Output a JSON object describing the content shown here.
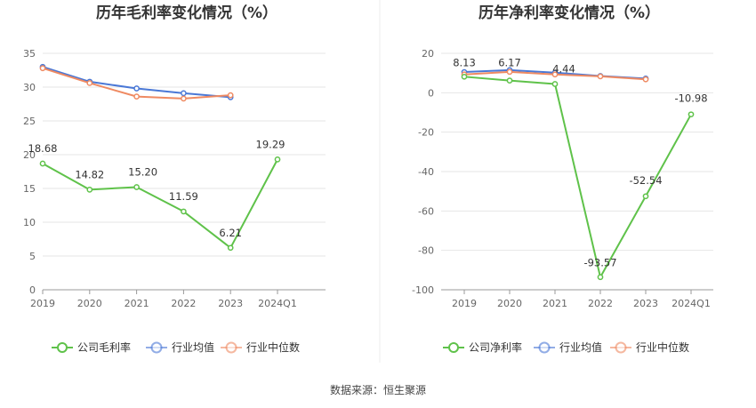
{
  "source": "数据来源：恒生聚源",
  "chart_data": [
    {
      "type": "line",
      "title": "历年毛利率变化情况（%）",
      "categories": [
        "2019",
        "2020",
        "2021",
        "2022",
        "2023",
        "2024Q1"
      ],
      "ylim": [
        0,
        35
      ],
      "yticks": [
        0,
        5,
        10,
        15,
        20,
        25,
        30,
        35
      ],
      "grid": true,
      "legend_position": "bottom",
      "series": [
        {
          "name": "公司毛利率",
          "color": "#5fc24a",
          "values": [
            18.68,
            14.82,
            15.2,
            11.59,
            6.21,
            19.29
          ],
          "labels": [
            "18.68",
            "14.82",
            "15.20",
            "11.59",
            "6.21",
            "19.29"
          ]
        },
        {
          "name": "行业均值",
          "color": "#4a78d6",
          "values": [
            33.0,
            30.8,
            29.8,
            29.1,
            28.5,
            null
          ]
        },
        {
          "name": "行业中位数",
          "color": "#ef8a62",
          "values": [
            32.8,
            30.6,
            28.6,
            28.3,
            28.8,
            null
          ]
        }
      ]
    },
    {
      "type": "line",
      "title": "历年净利率变化情况（%）",
      "categories": [
        "2019",
        "2020",
        "2021",
        "2022",
        "2023",
        "2024Q1"
      ],
      "ylim": [
        -100,
        20
      ],
      "yticks": [
        -100,
        -80,
        -60,
        -40,
        -20,
        0,
        20
      ],
      "grid": true,
      "legend_position": "bottom",
      "series": [
        {
          "name": "公司净利率",
          "color": "#5fc24a",
          "values": [
            8.13,
            6.17,
            4.44,
            -93.57,
            -52.54,
            -10.98
          ],
          "labels": [
            "8.13",
            "6.17",
            "4.44",
            "-93.57",
            "-52.54",
            "-10.98"
          ]
        },
        {
          "name": "行业均值",
          "color": "#4a78d6",
          "values": [
            10.5,
            11.5,
            10.2,
            8.5,
            7.2,
            null
          ]
        },
        {
          "name": "行业中位数",
          "color": "#ef8a62",
          "values": [
            9.3,
            10.6,
            9.3,
            8.3,
            6.8,
            null
          ]
        }
      ]
    }
  ]
}
